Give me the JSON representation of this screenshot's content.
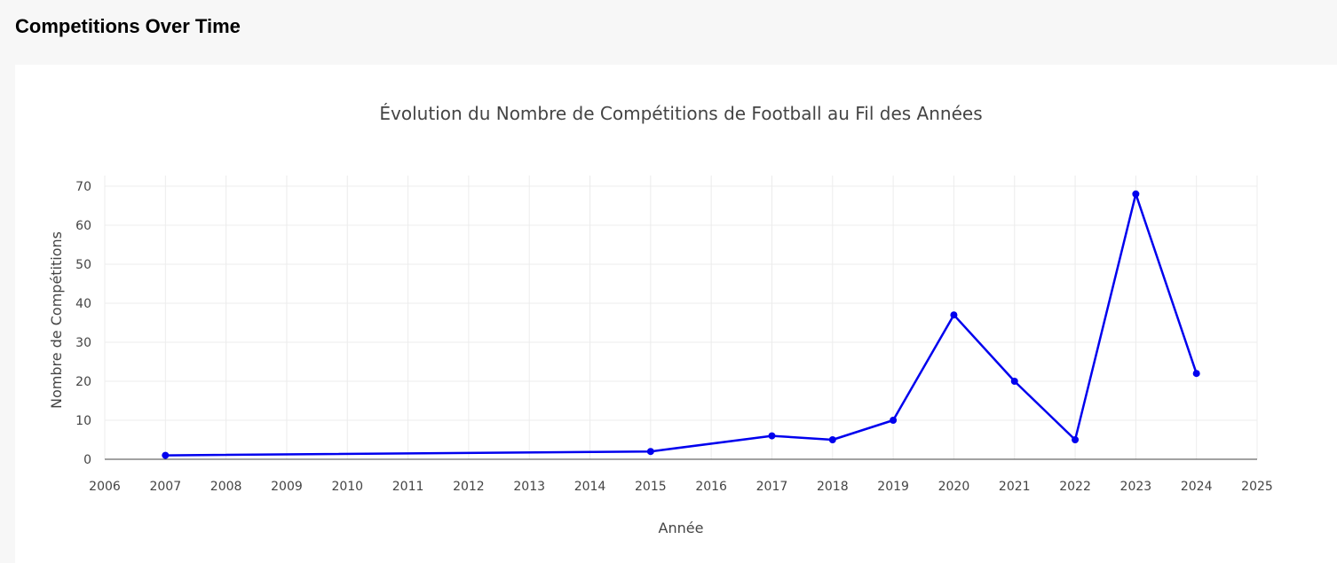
{
  "header": {
    "title": "Competitions Over Time"
  },
  "chart_data": {
    "type": "line",
    "title": "Évolution du Nombre de Compétitions de Football au Fil des Années",
    "xlabel": "Année",
    "ylabel": "Nombre de Compétitions",
    "x": [
      2007,
      2015,
      2017,
      2018,
      2019,
      2020,
      2021,
      2022,
      2023,
      2024
    ],
    "y": [
      1,
      2,
      6,
      5,
      10,
      37,
      20,
      5,
      68,
      22
    ],
    "xlim": [
      2006,
      2025
    ],
    "ylim": [
      0,
      70
    ],
    "x_ticks": [
      2006,
      2007,
      2008,
      2009,
      2010,
      2011,
      2012,
      2013,
      2014,
      2015,
      2016,
      2017,
      2018,
      2019,
      2020,
      2021,
      2022,
      2023,
      2024,
      2025
    ],
    "y_ticks": [
      0,
      10,
      20,
      30,
      40,
      50,
      60,
      70
    ],
    "grid": true,
    "line_color": "#0000ee",
    "marker_color": "#0000ee",
    "grid_color": "#ececec",
    "axis_color": "#444444"
  }
}
